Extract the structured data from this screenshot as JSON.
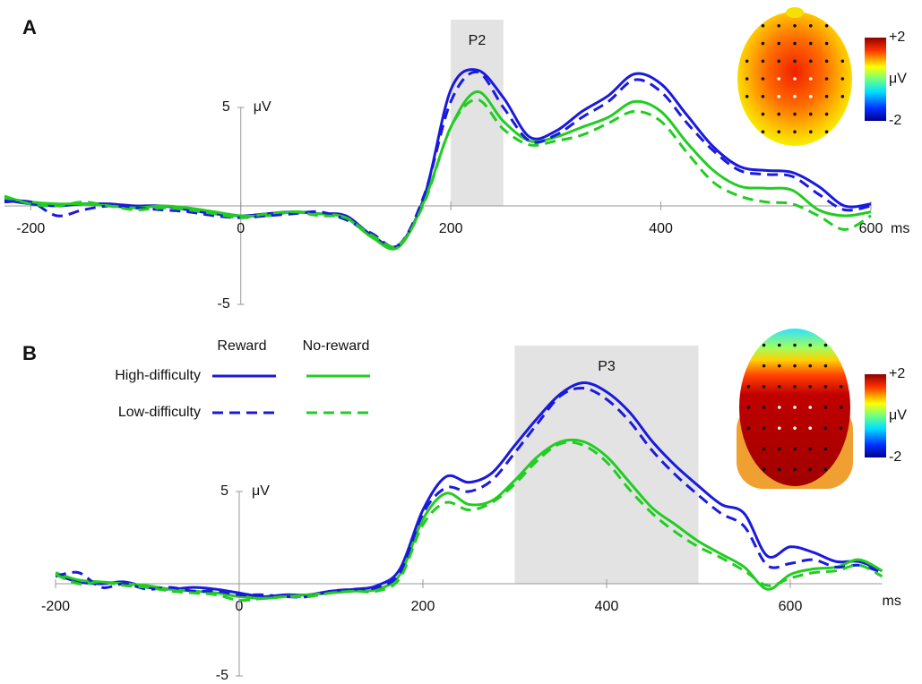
{
  "chart_data": [
    {
      "type": "line",
      "panel_label": "A",
      "x": [
        -225,
        -200,
        -175,
        -150,
        -125,
        -100,
        -75,
        -50,
        -25,
        0,
        25,
        50,
        75,
        100,
        125,
        150,
        175,
        200,
        225,
        250,
        275,
        300,
        325,
        350,
        375,
        400,
        425,
        450,
        475,
        500,
        525,
        550,
        575,
        600
      ],
      "xlim": [
        -225,
        600
      ],
      "xticks": [
        -200,
        0,
        200,
        400,
        600
      ],
      "x_unit": "ms",
      "ylim": [
        -5,
        8.5
      ],
      "yticks": [
        5,
        -5
      ],
      "y_unit": "μV",
      "annotation": {
        "text": "P2",
        "window": [
          200,
          250
        ]
      },
      "colorbar": {
        "label": "μV",
        "ticks": [
          {
            "value": 2,
            "label": "+2"
          },
          -2
        ]
      },
      "series": [
        {
          "color": "#1a1adc",
          "dashed": false,
          "values": [
            0.3,
            0.1,
            0.0,
            0.1,
            0.1,
            0.0,
            0.0,
            -0.2,
            -0.4,
            -0.5,
            -0.4,
            -0.3,
            -0.4,
            -0.5,
            -1.5,
            -2.0,
            0.5,
            5.9,
            6.9,
            5.5,
            3.5,
            3.8,
            4.8,
            5.6,
            6.7,
            6.2,
            4.6,
            3.0,
            2.0,
            1.8,
            1.7,
            1.0,
            0.0,
            0.1
          ]
        },
        {
          "color": "#22cc22",
          "dashed": false,
          "values": [
            0.4,
            0.2,
            0.1,
            0.1,
            0.0,
            -0.1,
            0.0,
            -0.1,
            -0.3,
            -0.5,
            -0.5,
            -0.3,
            -0.4,
            -0.6,
            -1.6,
            -2.1,
            0.3,
            4.0,
            5.8,
            4.3,
            3.3,
            3.5,
            4.0,
            4.5,
            5.3,
            4.8,
            3.2,
            1.8,
            1.0,
            0.9,
            0.8,
            -0.2,
            -0.5,
            -0.3
          ]
        },
        {
          "color": "#1a1adc",
          "dashed": true,
          "values": [
            0.2,
            0.2,
            -0.5,
            -0.2,
            0.0,
            -0.1,
            -0.2,
            -0.3,
            -0.5,
            -0.6,
            -0.5,
            -0.4,
            -0.3,
            -0.7,
            -1.4,
            -2.0,
            0.6,
            5.3,
            6.8,
            5.0,
            3.3,
            3.6,
            4.5,
            5.3,
            6.4,
            5.8,
            4.2,
            2.8,
            1.8,
            1.6,
            1.5,
            0.6,
            -0.2,
            0.0
          ]
        },
        {
          "color": "#22cc22",
          "dashed": true,
          "values": [
            0.5,
            0.1,
            0.0,
            0.2,
            0.0,
            -0.2,
            -0.1,
            -0.2,
            -0.4,
            -0.6,
            -0.4,
            -0.3,
            -0.5,
            -0.6,
            -1.5,
            -2.0,
            0.2,
            4.0,
            5.4,
            3.9,
            3.1,
            3.3,
            3.6,
            4.2,
            4.8,
            4.3,
            2.7,
            1.2,
            0.5,
            0.2,
            0.1,
            -0.5,
            -1.2,
            -0.5
          ]
        }
      ]
    },
    {
      "type": "line",
      "panel_label": "B",
      "x": [
        -200,
        -175,
        -150,
        -125,
        -100,
        -75,
        -50,
        -25,
        0,
        25,
        50,
        75,
        100,
        125,
        150,
        175,
        200,
        225,
        250,
        275,
        300,
        325,
        350,
        375,
        400,
        425,
        450,
        475,
        500,
        525,
        550,
        575,
        600,
        625,
        650,
        675,
        700
      ],
      "xlim": [
        -200,
        700
      ],
      "xticks": [
        -200,
        0,
        200,
        400,
        600
      ],
      "x_unit": "ms",
      "ylim": [
        -5,
        11
      ],
      "yticks": [
        5,
        -5
      ],
      "y_unit": "μV",
      "annotation": {
        "text": "P3",
        "window": [
          300,
          500
        ]
      },
      "colorbar": {
        "label": "μV",
        "ticks": [
          {
            "value": 2,
            "label": "+2"
          },
          -2
        ]
      },
      "legend": {
        "columns": [
          "Reward",
          "No-reward"
        ],
        "rows": [
          "High-difficulty",
          "Low-difficulty"
        ]
      },
      "series": [
        {
          "color": "#1a1adc",
          "dashed": false,
          "values": [
            0.5,
            0.1,
            0.0,
            0.1,
            -0.2,
            -0.3,
            -0.2,
            -0.3,
            -0.5,
            -0.7,
            -0.6,
            -0.6,
            -0.4,
            -0.3,
            -0.1,
            0.8,
            4.0,
            5.8,
            5.5,
            6.0,
            7.5,
            9.0,
            10.3,
            10.9,
            10.4,
            9.3,
            7.7,
            6.4,
            5.3,
            4.3,
            3.8,
            1.5,
            2.0,
            1.7,
            1.2,
            1.2,
            0.7
          ]
        },
        {
          "color": "#22cc22",
          "dashed": false,
          "values": [
            0.6,
            0.2,
            0.1,
            0.0,
            -0.1,
            -0.3,
            -0.4,
            -0.5,
            -0.7,
            -0.8,
            -0.7,
            -0.6,
            -0.5,
            -0.4,
            -0.3,
            0.5,
            3.5,
            4.9,
            4.3,
            4.5,
            5.6,
            6.9,
            7.7,
            7.7,
            6.9,
            5.5,
            4.1,
            3.2,
            2.3,
            1.6,
            0.9,
            -0.3,
            0.5,
            0.8,
            0.9,
            1.3,
            0.7
          ]
        },
        {
          "color": "#1a1adc",
          "dashed": true,
          "values": [
            0.4,
            0.6,
            -0.2,
            0.0,
            -0.3,
            -0.2,
            -0.4,
            -0.4,
            -0.6,
            -0.6,
            -0.7,
            -0.7,
            -0.4,
            -0.3,
            -0.2,
            0.6,
            3.8,
            5.2,
            5.0,
            5.6,
            7.1,
            8.7,
            10.2,
            10.6,
            10.0,
            8.8,
            7.2,
            5.9,
            4.8,
            3.8,
            3.1,
            1.0,
            1.1,
            1.3,
            0.9,
            1.0,
            0.6
          ]
        },
        {
          "color": "#22cc22",
          "dashed": true,
          "values": [
            0.5,
            0.0,
            0.1,
            -0.1,
            -0.2,
            -0.4,
            -0.5,
            -0.6,
            -0.9,
            -0.8,
            -0.7,
            -0.7,
            -0.5,
            -0.4,
            -0.4,
            0.3,
            3.2,
            4.4,
            4.0,
            4.4,
            5.4,
            6.7,
            7.6,
            7.5,
            6.6,
            5.1,
            3.8,
            2.8,
            2.0,
            1.4,
            0.7,
            -0.1,
            0.3,
            0.6,
            0.7,
            1.0,
            0.4
          ]
        }
      ]
    }
  ]
}
